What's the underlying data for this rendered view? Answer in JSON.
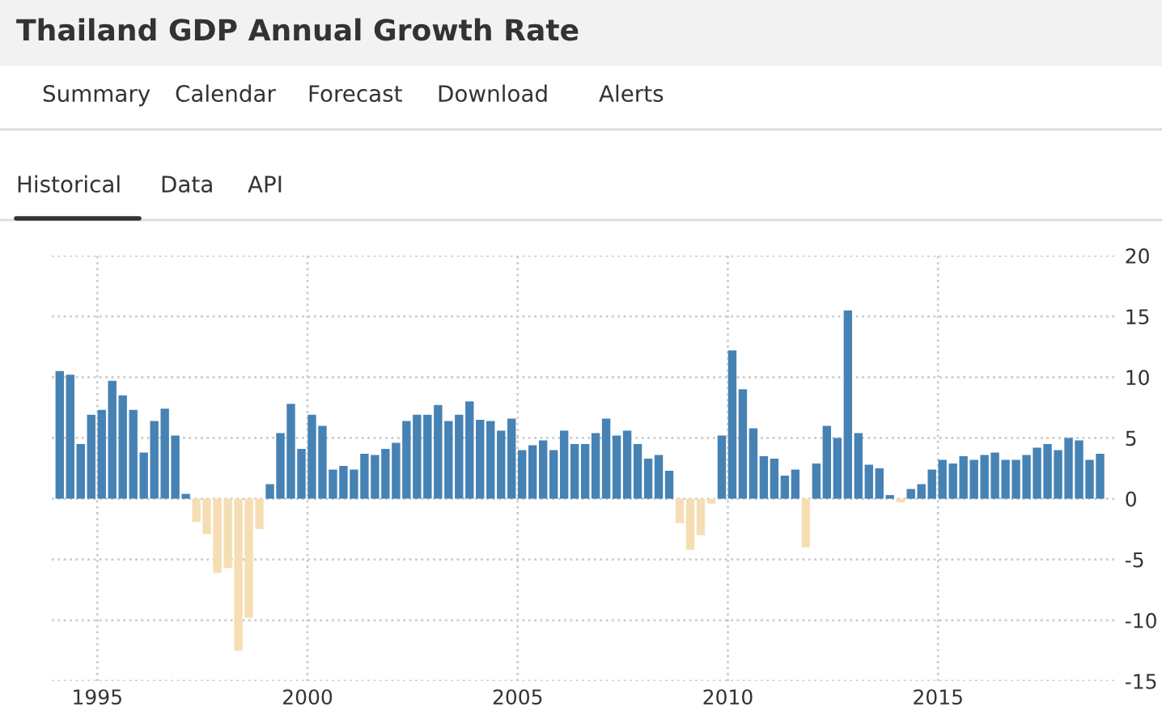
{
  "chart_data": {
    "type": "bar",
    "title": "Thailand GDP Annual Growth Rate",
    "annotations": [
      "Summary",
      "Calendar",
      "Forecast",
      "Download",
      "Alerts",
      "Historical",
      "Data",
      "API"
    ],
    "x": [
      "1994-01",
      "1994-04",
      "1994-07",
      "1994-10",
      "1995-01",
      "1995-04",
      "1995-07",
      "1995-10",
      "1996-01",
      "1996-04",
      "1996-07",
      "1996-10",
      "1997-01",
      "1997-04",
      "1997-07",
      "1997-10",
      "1998-01",
      "1998-04",
      "1998-07",
      "1998-10",
      "1999-01",
      "1999-04",
      "1999-07",
      "1999-10",
      "2000-01",
      "2000-04",
      "2000-07",
      "2000-10",
      "2001-01",
      "2001-04",
      "2001-07",
      "2001-10",
      "2002-01",
      "2002-04",
      "2002-07",
      "2002-10",
      "2003-01",
      "2003-04",
      "2003-07",
      "2003-10",
      "2004-01",
      "2004-04",
      "2004-07",
      "2004-10",
      "2005-01",
      "2005-04",
      "2005-07",
      "2005-10",
      "2006-01",
      "2006-04",
      "2006-07",
      "2006-10",
      "2007-01",
      "2007-04",
      "2007-07",
      "2007-10",
      "2008-01",
      "2008-04",
      "2008-07",
      "2008-10",
      "2009-01",
      "2009-04",
      "2009-07",
      "2009-10",
      "2010-01",
      "2010-04",
      "2010-07",
      "2010-10",
      "2011-01",
      "2011-04",
      "2011-07",
      "2011-10",
      "2012-01",
      "2012-04",
      "2012-07",
      "2012-10",
      "2013-01",
      "2013-04",
      "2013-07",
      "2013-10",
      "2014-01",
      "2014-04",
      "2014-07",
      "2014-10",
      "2015-01",
      "2015-04",
      "2015-07",
      "2015-10",
      "2016-01",
      "2016-04",
      "2016-07",
      "2016-10",
      "2017-01",
      "2017-04",
      "2017-07",
      "2017-10",
      "2018-01",
      "2018-04",
      "2018-07",
      "2018-10"
    ],
    "values": [
      10.5,
      10.2,
      4.5,
      6.9,
      7.3,
      9.7,
      8.5,
      7.3,
      3.8,
      6.4,
      7.4,
      5.2,
      0.4,
      -1.9,
      -2.9,
      -6.1,
      -5.7,
      -12.5,
      -9.8,
      -2.5,
      1.2,
      5.4,
      7.8,
      4.1,
      6.9,
      6.0,
      2.4,
      2.7,
      2.4,
      3.7,
      3.6,
      4.1,
      4.6,
      6.4,
      6.9,
      6.9,
      7.7,
      6.4,
      6.9,
      8.0,
      6.5,
      6.4,
      5.6,
      6.6,
      4.0,
      4.4,
      4.8,
      4.0,
      5.6,
      4.5,
      4.5,
      5.4,
      6.6,
      5.2,
      5.6,
      4.5,
      3.3,
      3.6,
      2.3,
      -2.0,
      -4.2,
      -3.0,
      -0.4,
      5.2,
      12.2,
      9.0,
      5.8,
      3.5,
      3.3,
      1.9,
      2.4,
      -4.0,
      2.9,
      6.0,
      5.0,
      15.5,
      5.4,
      2.8,
      2.5,
      0.3,
      -0.3,
      0.8,
      1.2,
      2.4,
      3.2,
      2.9,
      3.5,
      3.2,
      3.6,
      3.8,
      3.2,
      3.2,
      3.6,
      4.2,
      4.5,
      4.0,
      5.0,
      4.8,
      3.2,
      3.7
    ],
    "colors": [
      "#4682b4",
      "#4682b4",
      "#4682b4",
      "#4682b4",
      "#4682b4",
      "#4682b4",
      "#4682b4",
      "#4682b4",
      "#4682b4",
      "#4682b4",
      "#4682b4",
      "#4682b4",
      "#4682b4",
      "#f5deb3",
      "#f5deb3",
      "#f5deb3",
      "#f5deb3",
      "#f5deb3",
      "#f5deb3",
      "#f5deb3",
      "#4682b4",
      "#4682b4",
      "#4682b4",
      "#4682b4",
      "#4682b4",
      "#4682b4",
      "#4682b4",
      "#4682b4",
      "#4682b4",
      "#4682b4",
      "#4682b4",
      "#4682b4",
      "#4682b4",
      "#4682b4",
      "#4682b4",
      "#4682b4",
      "#4682b4",
      "#4682b4",
      "#4682b4",
      "#4682b4",
      "#4682b4",
      "#4682b4",
      "#4682b4",
      "#4682b4",
      "#4682b4",
      "#4682b4",
      "#4682b4",
      "#4682b4",
      "#4682b4",
      "#4682b4",
      "#4682b4",
      "#4682b4",
      "#4682b4",
      "#4682b4",
      "#4682b4",
      "#4682b4",
      "#4682b4",
      "#4682b4",
      "#4682b4",
      "#f5deb3",
      "#f5deb3",
      "#f5deb3",
      "#f5deb3",
      "#4682b4",
      "#4682b4",
      "#4682b4",
      "#4682b4",
      "#4682b4",
      "#4682b4",
      "#4682b4",
      "#4682b4",
      "#f5deb3",
      "#4682b4",
      "#4682b4",
      "#4682b4",
      "#4682b4",
      "#4682b4",
      "#4682b4",
      "#4682b4",
      "#4682b4",
      "#f5deb3",
      "#4682b4",
      "#4682b4",
      "#4682b4",
      "#4682b4",
      "#4682b4",
      "#4682b4",
      "#4682b4",
      "#4682b4",
      "#4682b4",
      "#4682b4",
      "#4682b4",
      "#4682b4",
      "#4682b4",
      "#4682b4",
      "#4682b4",
      "#4682b4",
      "#4682b4",
      "#4682b4",
      "#4682b4"
    ],
    "xlim": [
      "1993-12",
      "2019-04"
    ],
    "xticks": [
      {
        "value": "1995",
        "label": "1995"
      },
      {
        "value": "2000",
        "label": "2000"
      },
      {
        "value": "2005",
        "label": "2005"
      },
      {
        "value": "2010",
        "label": "2010"
      },
      {
        "value": "2015",
        "label": "2015"
      }
    ],
    "ylim": [
      -15,
      20
    ],
    "yticks": [
      20,
      15,
      10,
      5,
      0,
      -5,
      -10,
      -15
    ],
    "grid": true
  }
}
